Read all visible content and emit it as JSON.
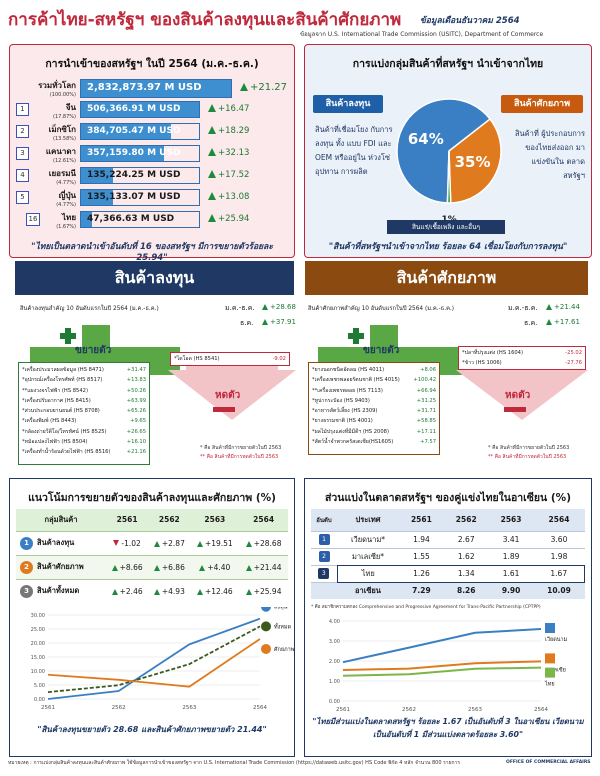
{
  "header": {
    "title": "การค้าไทย-สหรัฐฯ ของสินค้าลงทุนและสินค้าศักยภาพ",
    "date_note": "ข้อมูลเดือนธันวาคม 2564",
    "source": "ข้อมูลจาก U.S. International Trade Commission (USITC), Department of Commerce"
  },
  "imports_panel": {
    "title": "การนำเข้าของสหรัฐฯ ในปี 2564 (ม.ค.-ธ.ค.)",
    "rows": [
      {
        "rank": "",
        "name": "รวมทั่วโลก",
        "share": "(100.00%)",
        "value": "2,832,873.97 M USD",
        "growth": "+21.27",
        "frac": 1.0
      },
      {
        "rank": "1",
        "name": "จีน",
        "share": "(17.87%)",
        "value": "506,366.91 M USD",
        "growth": "+16.47",
        "frac": 1.0
      },
      {
        "rank": "2",
        "name": "เม็กซิโก",
        "share": "(13.58%)",
        "value": "384,705.47 M USD",
        "growth": "+18.29",
        "frac": 0.76
      },
      {
        "rank": "3",
        "name": "แคนาดา",
        "share": "(12.61%)",
        "value": "357,159.80 M USD",
        "growth": "+32.13",
        "frac": 0.7
      },
      {
        "rank": "4",
        "name": "เยอรมนี",
        "share": "(4.77%)",
        "value": "135,224.25 M USD",
        "growth": "+17.52",
        "frac": 0.27
      },
      {
        "rank": "5",
        "name": "ญี่ปุ่น",
        "share": "(4.77%)",
        "value": "135,133.07 M USD",
        "growth": "+13.08",
        "frac": 0.27
      },
      {
        "rank": "16",
        "name": "ไทย",
        "share": "(1.67%)",
        "value": "47,366.63 M USD",
        "growth": "+25.94",
        "frac": 0.09
      }
    ],
    "quote": "\"ไทยเป็นตลาดนำเข้าอันดับที่ 16 ของสหรัฐฯ มีการขยายตัวร้อยละ 25.94\""
  },
  "group_panel": {
    "title": "การแบ่งกลุ่มสินค้าที่สหรัฐฯ นำเข้าจากไทย",
    "invest_tag": "สินค้าลงทุน",
    "invest_desc": "สินค้าที่เชื่อมโยง กับการลงทุน ทั้ง แบบ FDI และ OEM หรืออยู่ใน ห่วงโซ่อุปทาน การผลิต",
    "potential_tag": "สินค้าศักยภาพ",
    "potential_desc": "สินค้าที่ ผู้ประกอบการ ของไทยส่งออก มาแข่งขันใน ตลาดสหรัฐฯ",
    "other_tag": "สินแร่/เชื้อเพลิง และอื่นๆ",
    "quote": "\"สินค้าที่สหรัฐฯนำเข้าจากไทย ร้อยละ 64 เชื่อมโยงกับการลงทุน\""
  },
  "chart_data": [
    {
      "type": "pie",
      "categories": [
        "สินค้าลงทุน",
        "สินค้าศักยภาพ",
        "สินแร่/เชื้อเพลิง และอื่นๆ"
      ],
      "values": [
        64,
        35,
        1
      ],
      "labels": [
        "64%",
        "35%",
        "1%"
      ],
      "colors": [
        "#3a7fc4",
        "#e07a1f",
        "#2f9e4a"
      ]
    },
    {
      "type": "line",
      "title": "แนวโน้มการขยายตัวของสินค้าลงทุนและศักยภาพ (%)",
      "x": [
        "2561",
        "2562",
        "2563",
        "2564"
      ],
      "ylim": [
        0,
        30
      ],
      "y_ticks": [
        "0.00",
        "5.00",
        "10.00",
        "15.00",
        "20.00",
        "25.00",
        "30.00"
      ],
      "series": [
        {
          "name": "ลงทุน",
          "values": [
            -1.02,
            2.87,
            19.51,
            28.68
          ],
          "color": "#3a7fc4",
          "dash": false
        },
        {
          "name": "ทั้งหมด",
          "values": [
            2.46,
            4.93,
            12.46,
            25.94
          ],
          "color": "#3d5a1e",
          "dash": true
        },
        {
          "name": "ศักยภาพ",
          "values": [
            8.66,
            6.86,
            4.4,
            21.44
          ],
          "color": "#e07a1f",
          "dash": false
        }
      ]
    },
    {
      "type": "line",
      "title": "ส่วนแบ่งในตลาดสหรัฐฯ ของคู่แข่งไทยในอาเซียน (%)",
      "x": [
        "2561",
        "2562",
        "2563",
        "2564"
      ],
      "ylim": [
        0,
        4
      ],
      "y_ticks": [
        "0.00",
        "1.00",
        "2.00",
        "3.00",
        "4.00"
      ],
      "series": [
        {
          "name": "เวียดนาม",
          "values": [
            1.94,
            2.67,
            3.41,
            3.6
          ],
          "color": "#3a7fc4"
        },
        {
          "name": "มาเลเซีย",
          "values": [
            1.55,
            1.62,
            1.89,
            1.98
          ],
          "color": "#e07a1f"
        },
        {
          "name": "ไทย",
          "values": [
            1.26,
            1.34,
            1.61,
            1.67
          ],
          "color": "#7ab648"
        }
      ]
    }
  ],
  "invest_section": {
    "banner": "สินค้าลงทุน",
    "subtitle": "สินค้าลงทุนสำคัญ 10 อันดับแรกในปี 2564 (ม.ค.-ธ.ค.)",
    "total_label_1": "ม.ค.-ธ.ค.",
    "total_value_1": "+28.68",
    "total_label_2": "ธ.ค.",
    "total_value_2": "+37.91",
    "expand_label": "ขยายตัว",
    "shrink_label": "หดตัว",
    "grow_items": [
      {
        "name": "*เครื่องประมวลผลข้อมูล (HS 8471)",
        "val": "+31.47"
      },
      {
        "name": "*อุปกรณ์เครื่องโทรศัพท์ (HS 8517)",
        "val": "+13.83"
      },
      {
        "name": "**แผงวงจรไฟฟ้า (HS 8542)",
        "val": "+50.26"
      },
      {
        "name": "*เครื่องปรับอากาศ (HS 8415)",
        "val": "+63.99"
      },
      {
        "name": "*ส่วนประกอบยานยนต์ (HS 8708)",
        "val": "+65.26"
      },
      {
        "name": "*เครื่องพิมพ์ (HS 8443)",
        "val": "+9.65"
      },
      {
        "name": "*กล้องถ่ายวีดีโอ/โทรทัศน์ (HS 8525)",
        "val": "+26.65"
      },
      {
        "name": "*หม้อแปลงไฟฟ้า (HS 8504)",
        "val": "+16.10"
      },
      {
        "name": "*เครื่องทำน้ำร้อนด้วยไฟฟ้า (HS 8516)",
        "val": "+21.16"
      }
    ],
    "shrink_items": [
      {
        "name": "*ไดโอด (HS 8541)",
        "val": "-9.02"
      }
    ],
    "note1": "* คือ สินค้าที่มีการขยายตัวในปี 2563",
    "note2": "** คือ สินค้าที่มีการหดตัวในปี 2563"
  },
  "potential_section": {
    "banner": "สินค้าศักยภาพ",
    "subtitle": "สินค้าศักยภาพสำคัญ 10 อันดับแรกในปี 2564 (ม.ค.-ธ.ค.)",
    "total_label_1": "ม.ค.-ธ.ค.",
    "total_value_1": "+21.44",
    "total_label_2": "ธ.ค.",
    "total_value_2": "+17.61",
    "expand_label": "ขยายตัว",
    "shrink_label": "หดตัว",
    "grow_items": [
      {
        "name": "*ยางนอกชนิดอัดลม (HS 4011)",
        "val": "+8.06"
      },
      {
        "name": "*เครื่องเพชรพลอยรัตนชาติ (HS 4015)",
        "val": "+100.42"
      },
      {
        "name": "**เครื่องเพชรพลอย (HS 7113)",
        "val": "+66.94"
      },
      {
        "name": "*ทูน่ากระป๋อง (HS 9403)",
        "val": "+31.25"
      },
      {
        "name": "*อาหารสัตว์เลี้ยง (HS 2309)",
        "val": "+31.71"
      },
      {
        "name": "*ยางธรรมชาติ (HS 4001)",
        "val": "+58.85"
      },
      {
        "name": "*ผลไม้ปรุงแต่งที่มีมีดีฯ (HS 2008)",
        "val": "+17.11"
      },
      {
        "name": "*สัตว์น้ำจำพวกครัสเตเชีย(HS1605)",
        "val": "+7.57"
      }
    ],
    "shrink_items": [
      {
        "name": "*ปลาที่ปรุงแต่ง (HS 1604)",
        "val": "-25.02"
      },
      {
        "name": "*ข้าว (HS 1006)",
        "val": "-27.76"
      }
    ],
    "note1": "* คือ สินค้าที่มีการขยายตัวในปี 2563",
    "note2": "** คือ สินค้าที่มีการหดตัวในปี 2563"
  },
  "trend_table": {
    "title": "แนวโน้มการขยายตัวของสินค้าลงทุนและศักยภาพ (%)",
    "header": [
      "กลุ่มสินค้า",
      "2561",
      "2562",
      "2563",
      "2564"
    ],
    "rows": [
      {
        "num": "1",
        "name": "สินค้าลงทุน",
        "vals": [
          "-1.02",
          "+2.87",
          "+19.51",
          "+28.68"
        ],
        "dir": [
          "d",
          "u",
          "u",
          "u"
        ]
      },
      {
        "num": "2",
        "name": "สินค้าศักยภาพ",
        "vals": [
          "+8.66",
          "+6.86",
          "+4.40",
          "+21.44"
        ],
        "dir": [
          "u",
          "u",
          "u",
          "u"
        ]
      },
      {
        "num": "3",
        "name": "สินค้าทั้งหมด",
        "vals": [
          "+2.46",
          "+4.93",
          "+12.46",
          "+25.94"
        ],
        "dir": [
          "u",
          "u",
          "u",
          "u"
        ]
      }
    ],
    "quote": "\"สินค้าลงทุนขยายตัว 28.68 และสินค้าศักยภาพขยายตัว 21.44\""
  },
  "share_table": {
    "title": "ส่วนแบ่งในตลาดสหรัฐฯ ของคู่แข่งไทยในอาเซียน (%)",
    "header": [
      "อันดับ",
      "ประเทศ",
      "2561",
      "2562",
      "2563",
      "2564"
    ],
    "rows": [
      {
        "rank": "1",
        "name": "เวียดนาม*",
        "vals": [
          "1.94",
          "2.67",
          "3.41",
          "3.60"
        ]
      },
      {
        "rank": "2",
        "name": "มาเลเซีย*",
        "vals": [
          "1.55",
          "1.62",
          "1.89",
          "1.98"
        ]
      },
      {
        "rank": "3",
        "name": "ไทย",
        "vals": [
          "1.26",
          "1.34",
          "1.61",
          "1.67"
        ]
      },
      {
        "rank": "",
        "name": "อาเซียน",
        "vals": [
          "7.29",
          "8.26",
          "9.90",
          "10.09"
        ]
      }
    ],
    "note": "* คือ สมาชิกความตกลง Comprehensive and Progressive Agreement for Trans-Pacific Partnership (CPTPP)",
    "quote": "\"ไทยมีส่วนแบ่งในตลาดสหรัฐฯ ร้อยละ 1.67 เป็นอันดับที่ 3 ในอาเซียน เวียดนามเป็นอันดับที่ 1 มีส่วนแบ่งตลาดร้อยละ 3.60\""
  },
  "footer": {
    "text": "หมายเหตุ : การแบ่งกลุ่มสินค้าลงทุนและสินค้าศักยภาพ ใช้ข้อมูลการนำเข้าของสหรัฐฯ จาก U.S. International Trade Commission (https://dataweb.usitc.gov) HS Code พิกัด 4 หลัก จำนวน 800 รายการ",
    "office": "OFFICE OF COMMERCIAL AFFAIRS"
  }
}
